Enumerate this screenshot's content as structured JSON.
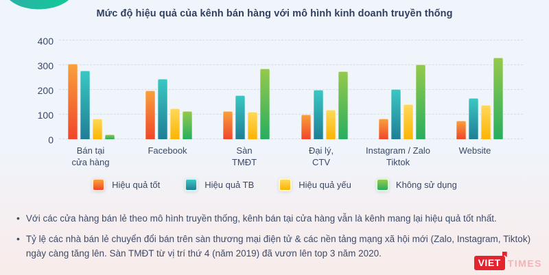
{
  "chart_data": {
    "type": "bar",
    "title": "Mức độ hiệu quả của kênh bán hàng với mô hình kinh doanh truyền thống",
    "categories": [
      [
        "Bán tại",
        "cửa hàng"
      ],
      [
        "Facebook"
      ],
      [
        "Sàn",
        "TMĐT"
      ],
      [
        "Đại lý,",
        "CTV"
      ],
      [
        "Instagram / Zalo",
        "Tiktok"
      ],
      [
        "Website"
      ]
    ],
    "series": [
      {
        "name": "Hiệu quả tốt",
        "color_top": "#F9A13C",
        "color_bottom": "#F0462A",
        "values": [
          305,
          197,
          114,
          101,
          83,
          75
        ]
      },
      {
        "name": "Hiệu quả TB",
        "color_top": "#3AC8C3",
        "color_bottom": "#1F7E96",
        "values": [
          277,
          244,
          178,
          200,
          204,
          166
        ]
      },
      {
        "name": "Hiệu quả yếu",
        "color_top": "#FFD95A",
        "color_bottom": "#FBB403",
        "values": [
          84,
          125,
          110,
          119,
          142,
          140
        ]
      },
      {
        "name": "Không sử dụng",
        "color_top": "#96C94C",
        "color_bottom": "#27AE5F",
        "values": [
          19,
          114,
          287,
          275,
          302,
          330
        ]
      }
    ],
    "yticks": [
      0,
      100,
      200,
      300,
      400
    ],
    "ylim": [
      0,
      400
    ],
    "grid": "horizontal-dashed",
    "legend_position": "bottom"
  },
  "notes": {
    "items": [
      "Với các cửa hàng bán lẻ theo mô hình truyền thống, kênh bán tại cửa hàng vẫn là kênh mang lại hiệu quả tốt nhất.",
      "Tỷ lệ các nhà bán lẻ chuyển đổi bán trên sàn thương mại điện tử & các nền tảng mạng xã hội mới (Zalo, Instagram, Tiktok) ngày càng tăng lên. Sàn TMĐT từ vị trí thứ 4 (năm 2019) đã vươn lên top 3 năm 2020."
    ]
  },
  "logo": {
    "part1": "VIET",
    "part2": "TIMES"
  },
  "colors": {
    "background_top": "#EFF5FB",
    "background_bottom": "#F8ECEA",
    "title_text": "#31405F",
    "body_text": "#3D4A68",
    "gridline": "#D6DCE3",
    "blob_teal_left": "#2BB1A8",
    "blob_teal_right": "#12C996",
    "logo_red": "#E3242F"
  }
}
